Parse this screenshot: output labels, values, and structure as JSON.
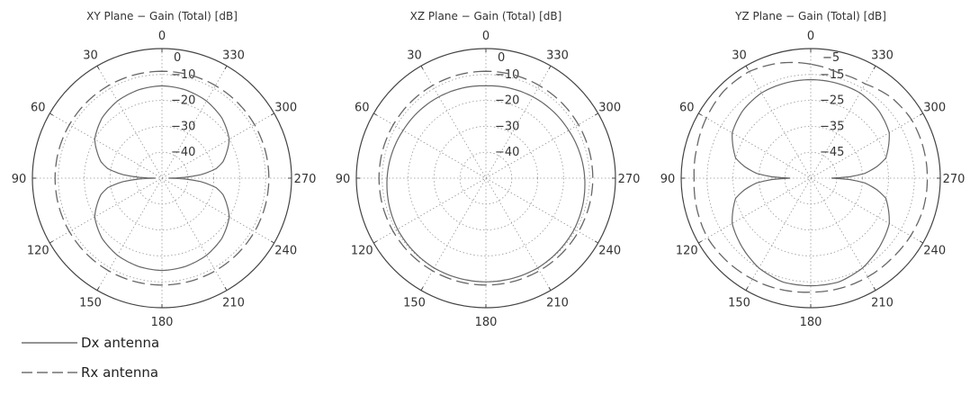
{
  "chart_data": [
    {
      "type": "polar-line",
      "title": "XY Plane − Gain (Total) [dB]",
      "angle_ticks": [
        "0",
        "30",
        "60",
        "90",
        "120",
        "150",
        "180",
        "210",
        "240",
        "270",
        "300",
        "330"
      ],
      "radial_tick_labels": [
        "0",
        "−10",
        "−20",
        "−30",
        "−40"
      ],
      "rlim": [
        -40,
        0
      ],
      "grid": true,
      "series": [
        {
          "name": "Dx antenna",
          "theta": [
            0,
            15,
            30,
            45,
            60,
            75,
            80,
            85,
            88,
            90,
            92,
            95,
            100,
            105,
            120,
            135,
            150,
            165,
            180,
            195,
            210,
            225,
            240,
            255,
            260,
            265,
            268,
            270,
            272,
            275,
            280,
            285,
            300,
            315,
            330,
            345
          ],
          "r": [
            -11.5,
            -11.8,
            -12.5,
            -13.8,
            -16,
            -20.5,
            -23,
            -28,
            -33,
            -38,
            -33,
            -28,
            -23,
            -20.5,
            -16,
            -13.8,
            -12.5,
            -11.8,
            -11.5,
            -11.8,
            -12.5,
            -13.8,
            -16,
            -20.5,
            -23,
            -28,
            -33,
            -38,
            -33,
            -28,
            -23,
            -20.5,
            -16,
            -13.8,
            -12.5,
            -11.8
          ]
        },
        {
          "name": "Rx antenna",
          "theta": [
            0,
            30,
            60,
            90,
            120,
            150,
            180,
            210,
            240,
            270,
            300,
            330
          ],
          "r": [
            -7,
            -7,
            -7,
            -7,
            -7,
            -7,
            -7,
            -7,
            -7,
            -7,
            -7,
            -7
          ]
        }
      ]
    },
    {
      "type": "polar-line",
      "title": "XZ Plane − Gain (Total) [dB]",
      "angle_ticks": [
        "0",
        "30",
        "60",
        "90",
        "120",
        "150",
        "180",
        "210",
        "240",
        "270",
        "300",
        "330"
      ],
      "radial_tick_labels": [
        "0",
        "−10",
        "−20",
        "−30",
        "−40"
      ],
      "rlim": [
        -40,
        0
      ],
      "grid": true,
      "series": [
        {
          "name": "Dx antenna",
          "theta": [
            0,
            30,
            60,
            90,
            120,
            150,
            180,
            210,
            240,
            270,
            300,
            330
          ],
          "r": [
            -11.5,
            -11,
            -10.5,
            -9.5,
            -8.5,
            -8,
            -8,
            -8,
            -8.5,
            -9.5,
            -10.5,
            -11
          ]
        },
        {
          "name": "Rx antenna",
          "theta": [
            0,
            30,
            60,
            90,
            120,
            150,
            180,
            210,
            240,
            270,
            300,
            330
          ],
          "r": [
            -7,
            -7,
            -7,
            -7,
            -7,
            -7,
            -7,
            -7,
            -7,
            -7,
            -7,
            -7
          ]
        }
      ]
    },
    {
      "type": "polar-line",
      "title": "YZ Plane − Gain (Total) [dB]",
      "angle_ticks": [
        "0",
        "30",
        "60",
        "90",
        "120",
        "150",
        "180",
        "210",
        "240",
        "270",
        "300",
        "330"
      ],
      "radial_tick_labels": [
        "−5",
        "−15",
        "−25",
        "−35",
        "−45"
      ],
      "rlim": [
        -50,
        0
      ],
      "grid": true,
      "series": [
        {
          "name": "Dx antenna",
          "theta": [
            0,
            15,
            30,
            45,
            60,
            75,
            80,
            85,
            88,
            90,
            92,
            95,
            100,
            105,
            120,
            135,
            150,
            165,
            180,
            195,
            210,
            225,
            240,
            255,
            260,
            265,
            268,
            270,
            272,
            275,
            280,
            285,
            300,
            315,
            330,
            345
          ],
          "r": [
            -12,
            -12,
            -12,
            -13,
            -15,
            -20,
            -24,
            -29,
            -35,
            -42,
            -35,
            -29,
            -24,
            -20,
            -15,
            -12.5,
            -10,
            -8.5,
            -8.5,
            -8.5,
            -10,
            -12.5,
            -15,
            -20,
            -24,
            -29,
            -35,
            -42,
            -35,
            -29,
            -24,
            -20,
            -15,
            -13,
            -12,
            -12
          ]
        },
        {
          "name": "Rx antenna",
          "theta": [
            0,
            15,
            30,
            45,
            60,
            75,
            90,
            105,
            120,
            135,
            150,
            165,
            180,
            195,
            210,
            225,
            240,
            255,
            270,
            285,
            300,
            315,
            330,
            345
          ],
          "r": [
            -6,
            -4,
            -2.5,
            -2.5,
            -3.5,
            -4.5,
            -5,
            -4.5,
            -4,
            -4.5,
            -5,
            -5.5,
            -6,
            -6,
            -6,
            -6,
            -5.5,
            -5,
            -5,
            -5,
            -5,
            -6,
            -8,
            -8
          ]
        }
      ]
    }
  ],
  "legend": {
    "dx_label": "Dx antenna",
    "rx_label": "Rx antenna"
  }
}
